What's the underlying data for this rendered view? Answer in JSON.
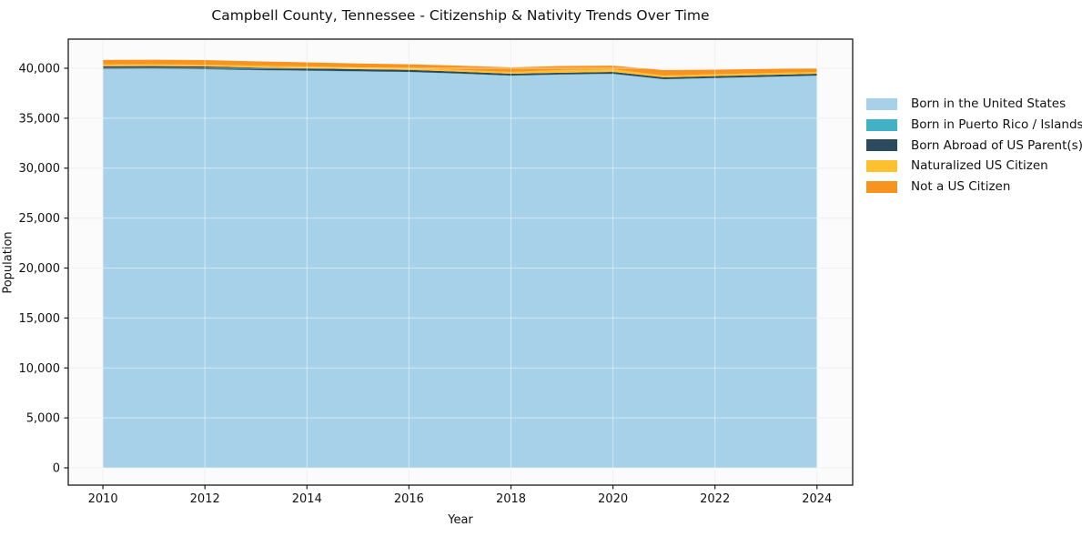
{
  "title": "Campbell County, Tennessee - Citizenship & Nativity Trends Over Time",
  "axes": {
    "x_label": "Year",
    "y_label": "Population",
    "x_tick_labels": [
      "2010",
      "2012",
      "2014",
      "2016",
      "2018",
      "2020",
      "2022",
      "2024"
    ],
    "y_tick_labels": [
      "0",
      "5,000",
      "10,000",
      "15,000",
      "20,000",
      "25,000",
      "30,000",
      "35,000",
      "40,000"
    ]
  },
  "legend": {
    "items": [
      {
        "label": "Born in the United States",
        "color": "#a6d1e8"
      },
      {
        "label": "Born in Puerto Rico / Islands",
        "color": "#41b2c6"
      },
      {
        "label": "Born Abroad of US Parent(s)",
        "color": "#2b4a5d"
      },
      {
        "label": "Naturalized US Citizen",
        "color": "#fdc02f"
      },
      {
        "label": "Not a US Citizen",
        "color": "#f7941f"
      }
    ]
  },
  "chart_data": {
    "type": "area",
    "stacked": true,
    "title": "Campbell County, Tennessee - Citizenship & Nativity Trends Over Time",
    "xlabel": "Year",
    "ylabel": "Population",
    "x": [
      2010,
      2011,
      2012,
      2013,
      2014,
      2015,
      2016,
      2017,
      2018,
      2019,
      2020,
      2021,
      2022,
      2023,
      2024
    ],
    "series": [
      {
        "name": "Born in the United States",
        "color": "#a6d1e8",
        "values": [
          39900,
          39920,
          39880,
          39800,
          39740,
          39670,
          39610,
          39440,
          39240,
          39350,
          39420,
          38880,
          39000,
          39120,
          39240
        ]
      },
      {
        "name": "Born in Puerto Rico / Islands",
        "color": "#41b2c6",
        "values": [
          30,
          30,
          30,
          30,
          30,
          30,
          30,
          30,
          30,
          30,
          30,
          30,
          30,
          30,
          30
        ]
      },
      {
        "name": "Born Abroad of US Parent(s)",
        "color": "#2b4a5d",
        "values": [
          270,
          270,
          270,
          250,
          230,
          210,
          200,
          190,
          180,
          180,
          180,
          180,
          180,
          180,
          180
        ]
      },
      {
        "name": "Naturalized US Citizen",
        "color": "#fdc02f",
        "values": [
          180,
          180,
          180,
          180,
          180,
          180,
          180,
          180,
          180,
          270,
          270,
          180,
          200,
          190,
          180
        ]
      },
      {
        "name": "Not a US Citizen",
        "color": "#f7941f",
        "values": [
          455,
          455,
          455,
          430,
          410,
          390,
          380,
          420,
          455,
          400,
          365,
          545,
          455,
          410,
          365
        ]
      }
    ],
    "x_ticks": [
      2010,
      2012,
      2014,
      2016,
      2018,
      2020,
      2022,
      2024
    ],
    "y_ticks": [
      0,
      5000,
      10000,
      15000,
      20000,
      25000,
      30000,
      35000,
      40000
    ],
    "xlim": [
      2009.32,
      2024.7
    ],
    "ylim": [
      -1730,
      42915
    ],
    "grid": true,
    "legend_position": "right",
    "baseline": 0
  }
}
